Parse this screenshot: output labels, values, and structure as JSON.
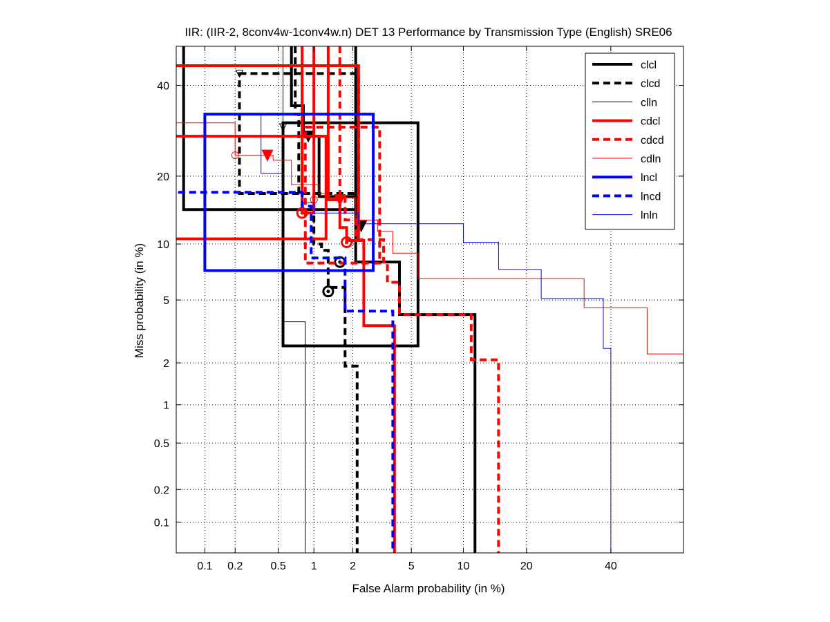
{
  "chart_data": {
    "type": "line",
    "title": "IIR: (IIR-2, 8conv4w-1conv4w.n) DET 13 Performance by Transmission Type (English) SRE06",
    "xlabel": "False Alarm probability (in %)",
    "ylabel": "Miss probability (in %)",
    "x_scale": "probit",
    "y_scale": "probit",
    "xlim": [
      0.05,
      60
    ],
    "ylim": [
      0.05,
      50
    ],
    "x_ticks": [
      0.1,
      0.2,
      0.5,
      1,
      2,
      5,
      10,
      20,
      40
    ],
    "x_tick_labels": [
      "0.1",
      "0.2",
      "0.5",
      "1",
      "2",
      "5",
      "10",
      "20",
      "40"
    ],
    "y_ticks": [
      0.1,
      0.2,
      0.5,
      1,
      2,
      5,
      10,
      20,
      40
    ],
    "y_tick_labels": [
      "0.1",
      "0.2",
      "0.5",
      "1",
      "2",
      "5",
      "10",
      "20",
      "40"
    ],
    "grid": true,
    "legend_position": "top-right",
    "series": [
      {
        "name": "clcl",
        "color": "#000000",
        "style": "solid",
        "width": "thick",
        "points": [
          [
            0.06,
            50
          ],
          [
            0.06,
            14.5
          ],
          [
            2.1,
            14.5
          ],
          [
            2.1,
            50
          ]
        ],
        "box": [
          0.55,
          2.6,
          5.5,
          31
        ],
        "points2": [
          [
            0.65,
            50
          ],
          [
            0.65,
            35
          ],
          [
            0.82,
            35
          ],
          [
            0.82,
            28
          ],
          [
            1.1,
            28
          ],
          [
            1.1,
            16.5
          ],
          [
            2.1,
            16.5
          ],
          [
            2.1,
            8.1
          ],
          [
            4.2,
            8.1
          ],
          [
            4.2,
            4.1
          ],
          [
            11.5,
            4.1
          ],
          [
            11.5,
            0.05
          ]
        ],
        "markers": [
          [
            0.9,
            28,
            "down-triangle"
          ],
          [
            2.3,
            12.2,
            "down-triangle"
          ],
          [
            1.6,
            8.1,
            "circle"
          ]
        ]
      },
      {
        "name": "clcd",
        "color": "#000000",
        "style": "dashed",
        "width": "thick",
        "points": [
          [
            0.7,
            50
          ],
          [
            0.7,
            33
          ],
          [
            0.75,
            33
          ],
          [
            0.75,
            17
          ],
          [
            1.0,
            17
          ],
          [
            1.0,
            10
          ],
          [
            1.15,
            10
          ],
          [
            1.15,
            9.3
          ],
          [
            1.3,
            9.3
          ],
          [
            1.3,
            5.9
          ],
          [
            1.75,
            5.9
          ],
          [
            1.75,
            1.9
          ],
          [
            2.15,
            1.9
          ],
          [
            2.15,
            0.05
          ]
        ],
        "box": [
          0.22,
          17,
          2.2,
          43
        ],
        "markers": [
          [
            0.22,
            43,
            "down-triangle-open"
          ],
          [
            1.3,
            5.6,
            "circle"
          ]
        ]
      },
      {
        "name": "clln",
        "color": "#000000",
        "style": "solid",
        "width": "thin",
        "points": [
          [
            0.55,
            50
          ],
          [
            0.55,
            3.7
          ],
          [
            0.85,
            3.7
          ],
          [
            0.85,
            0.05
          ]
        ],
        "markers": [
          [
            0.55,
            30,
            "down-triangle-open"
          ]
        ]
      },
      {
        "name": "cdcl",
        "color": "#ff0000",
        "style": "solid",
        "width": "thick",
        "points": [
          [
            0.03,
            45
          ],
          [
            2.2,
            45
          ],
          [
            2.2,
            10.4
          ],
          [
            2.4,
            10.4
          ],
          [
            2.4,
            3.5
          ],
          [
            3.9,
            3.5
          ],
          [
            3.9,
            0.05
          ]
        ],
        "box": [
          0.03,
          10.6,
          1.25,
          28
        ],
        "points2": [
          [
            0.8,
            50
          ],
          [
            0.8,
            14
          ],
          [
            1.0,
            14
          ],
          [
            1.0,
            50
          ]
        ],
        "points3": [
          [
            1.3,
            50
          ],
          [
            1.3,
            16
          ],
          [
            1.6,
            16
          ],
          [
            1.6,
            12
          ],
          [
            1.8,
            12
          ],
          [
            1.8,
            10.4
          ],
          [
            2.4,
            10.4
          ]
        ],
        "markers": [
          [
            0.4,
            24,
            "down-triangle"
          ],
          [
            0.8,
            14,
            "circle"
          ],
          [
            1.6,
            16,
            "down-triangle"
          ],
          [
            1.8,
            10.2,
            "circle"
          ]
        ]
      },
      {
        "name": "cdcd",
        "color": "#ff0000",
        "style": "dashed",
        "width": "thick",
        "points": [
          [
            1.6,
            50
          ],
          [
            1.6,
            16.5
          ],
          [
            1.75,
            16.5
          ],
          [
            1.75,
            13
          ],
          [
            2.1,
            13
          ],
          [
            2.1,
            10.5
          ],
          [
            3.3,
            10.5
          ],
          [
            3.3,
            8.1
          ],
          [
            3.5,
            8.1
          ],
          [
            3.5,
            6.3
          ],
          [
            4.2,
            6.3
          ],
          [
            4.2,
            4.1
          ],
          [
            11.0,
            4.1
          ],
          [
            11.0,
            2.1
          ],
          [
            15.0,
            2.1
          ],
          [
            15.0,
            0.05
          ]
        ],
        "box": [
          0.85,
          8.0,
          3.1,
          30
        ]
      },
      {
        "name": "cdln",
        "color": "#ff0000",
        "style": "solid",
        "width": "thin",
        "points": [
          [
            0.03,
            31
          ],
          [
            0.2,
            31
          ],
          [
            0.2,
            24
          ],
          [
            0.45,
            24
          ],
          [
            0.45,
            23
          ],
          [
            0.65,
            23
          ],
          [
            0.65,
            18.5
          ],
          [
            1.1,
            18.5
          ],
          [
            1.1,
            17
          ],
          [
            1.3,
            17
          ],
          [
            1.3,
            16.3
          ],
          [
            2.1,
            16.3
          ],
          [
            2.1,
            13
          ],
          [
            3.0,
            13
          ],
          [
            3.0,
            11.5
          ],
          [
            3.8,
            11.5
          ],
          [
            3.8,
            9
          ],
          [
            5.5,
            9
          ],
          [
            5.5,
            6.6
          ],
          [
            33,
            6.6
          ],
          [
            33,
            4.5
          ],
          [
            50,
            4.5
          ],
          [
            50,
            2.3
          ],
          [
            60,
            2.3
          ]
        ],
        "markers": [
          [
            0.2,
            24,
            "circle-open"
          ],
          [
            1.0,
            16,
            "circle-open"
          ]
        ]
      },
      {
        "name": "lncl",
        "color": "#0000ff",
        "style": "solid",
        "width": "thick",
        "box": [
          0.1,
          7.3,
          2.8,
          33
        ]
      },
      {
        "name": "lncd",
        "color": "#0000ff",
        "style": "dashed",
        "width": "thick",
        "points": [
          [
            0.03,
            17.2
          ],
          [
            0.8,
            17.2
          ],
          [
            0.8,
            15
          ],
          [
            0.95,
            15
          ],
          [
            0.95,
            8.5
          ],
          [
            1.75,
            8.5
          ],
          [
            1.75,
            4.3
          ],
          [
            3.8,
            4.3
          ],
          [
            3.8,
            0.05
          ]
        ]
      },
      {
        "name": "lnln",
        "color": "#0000ff",
        "style": "solid",
        "width": "thin",
        "points": [
          [
            0.35,
            33
          ],
          [
            0.35,
            20.5
          ],
          [
            0.55,
            20.5
          ],
          [
            0.55,
            17
          ],
          [
            0.8,
            17
          ],
          [
            0.8,
            15.5
          ],
          [
            1.0,
            15.5
          ],
          [
            1.0,
            14
          ],
          [
            2.2,
            14
          ],
          [
            2.2,
            12.5
          ],
          [
            10,
            12.5
          ],
          [
            10,
            10.2
          ],
          [
            15,
            10.2
          ],
          [
            15,
            7.4
          ],
          [
            23,
            7.4
          ],
          [
            23,
            5.1
          ],
          [
            38,
            5.1
          ],
          [
            38,
            2.5
          ],
          [
            40,
            2.5
          ],
          [
            40,
            0.05
          ]
        ]
      }
    ]
  }
}
